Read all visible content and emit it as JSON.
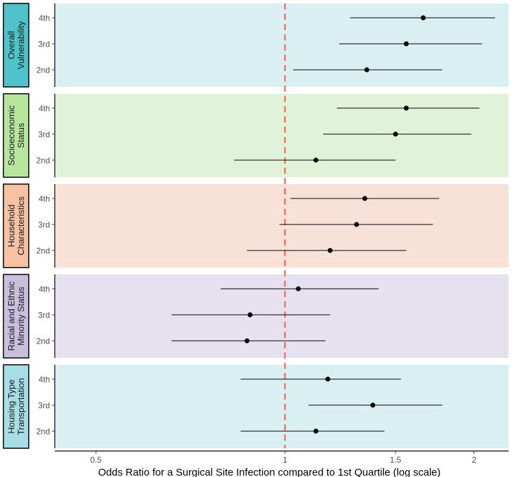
{
  "chart_data": {
    "type": "forest",
    "xlabel": "Odds Ratio for a Surgical Site Infection compared to 1st Quartile (log scale)",
    "x_scale": "log",
    "xlim": [
      0.43,
      2.27
    ],
    "x_ticks": [
      {
        "value": 0.5,
        "label": "0.5"
      },
      {
        "value": 1,
        "label": "1"
      },
      {
        "value": 1.5,
        "label": "1.5"
      },
      {
        "value": 2,
        "label": "2"
      }
    ],
    "reference_line": {
      "value": 1,
      "color": "#f26b50",
      "style": "dashed"
    },
    "colors": {
      "point": "#000000",
      "whisker": "#000000",
      "strip_border": "#000000"
    },
    "panels": [
      {
        "label_lines": [
          "Overall",
          "Vulnerability"
        ],
        "panel_bg": "#d9eff2",
        "strip_bg": "#4fc3c9",
        "rows": [
          {
            "quartile": "4th",
            "or": 1.66,
            "lo": 1.27,
            "hi": 2.16
          },
          {
            "quartile": "3rd",
            "or": 1.56,
            "lo": 1.22,
            "hi": 2.06
          },
          {
            "quartile": "2nd",
            "or": 1.35,
            "lo": 1.03,
            "hi": 1.78
          }
        ]
      },
      {
        "label_lines": [
          "Socioeconomic",
          "Status"
        ],
        "panel_bg": "#e0f3d8",
        "strip_bg": "#b7e59e",
        "rows": [
          {
            "quartile": "4th",
            "or": 1.56,
            "lo": 1.21,
            "hi": 2.04
          },
          {
            "quartile": "3rd",
            "or": 1.5,
            "lo": 1.15,
            "hi": 1.98
          },
          {
            "quartile": "2nd",
            "or": 1.12,
            "lo": 0.83,
            "hi": 1.5
          }
        ]
      },
      {
        "label_lines": [
          "Household",
          "Characteristics"
        ],
        "panel_bg": "#f8e2d8",
        "strip_bg": "#f7c1a3",
        "rows": [
          {
            "quartile": "4th",
            "or": 1.34,
            "lo": 1.02,
            "hi": 1.76
          },
          {
            "quartile": "3rd",
            "or": 1.3,
            "lo": 0.98,
            "hi": 1.72
          },
          {
            "quartile": "2nd",
            "or": 1.18,
            "lo": 0.87,
            "hi": 1.56
          }
        ]
      },
      {
        "label_lines": [
          "Racial and Ethnic",
          "Minority Status"
        ],
        "panel_bg": "#e5e1ee",
        "strip_bg": "#c9bfdc",
        "rows": [
          {
            "quartile": "4th",
            "or": 1.05,
            "lo": 0.79,
            "hi": 1.41
          },
          {
            "quartile": "3rd",
            "or": 0.88,
            "lo": 0.66,
            "hi": 1.18
          },
          {
            "quartile": "2nd",
            "or": 0.87,
            "lo": 0.66,
            "hi": 1.16
          }
        ]
      },
      {
        "label_lines": [
          "Housing Type",
          "Transportation"
        ],
        "panel_bg": "#d9eff2",
        "strip_bg": "#a7dde4",
        "rows": [
          {
            "quartile": "4th",
            "or": 1.17,
            "lo": 0.85,
            "hi": 1.53
          },
          {
            "quartile": "3rd",
            "or": 1.38,
            "lo": 1.09,
            "hi": 1.78
          },
          {
            "quartile": "2nd",
            "or": 1.12,
            "lo": 0.85,
            "hi": 1.44
          }
        ]
      }
    ]
  }
}
